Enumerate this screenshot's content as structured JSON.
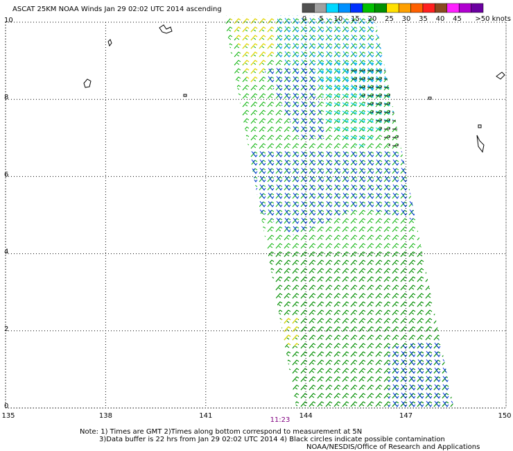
{
  "chart_data": {
    "type": "wind-swath",
    "title": "ASCAT 25KM NOAA Winds Jan 29 02:02 UTC 2014 ascending",
    "xlim": [
      135,
      150
    ],
    "xticks": [
      135,
      138,
      141,
      144,
      147,
      150
    ],
    "ylim": [
      0,
      10
    ],
    "yticks": [
      0,
      2,
      4,
      6,
      8,
      10
    ],
    "grid": true,
    "time_label": "11:23",
    "colorbar": {
      "colors": [
        "#505050",
        "#a0a0a0",
        "#00d8ff",
        "#0090ff",
        "#0030ff",
        "#00c000",
        "#009000",
        "#ffe000",
        "#ffa000",
        "#ff6000",
        "#ff2020",
        "#8a4a20",
        "#ff20ff",
        "#b000d0",
        "#6a00a0"
      ],
      "labels": [
        "0",
        "5",
        "10",
        "15",
        "20",
        "25",
        "30",
        "35",
        "40",
        "45",
        ">50 knots"
      ]
    },
    "notes": [
      "Note: 1) Times are GMT 2)Times along bottom correspond to measurement at 5N",
      "3)Data buffer is 22 hrs from Jan 29 02:02 UTC 2014 4) Black circles indicate possible contamination",
      "NOAA/NESDIS/Office of Research and Applications"
    ]
  }
}
